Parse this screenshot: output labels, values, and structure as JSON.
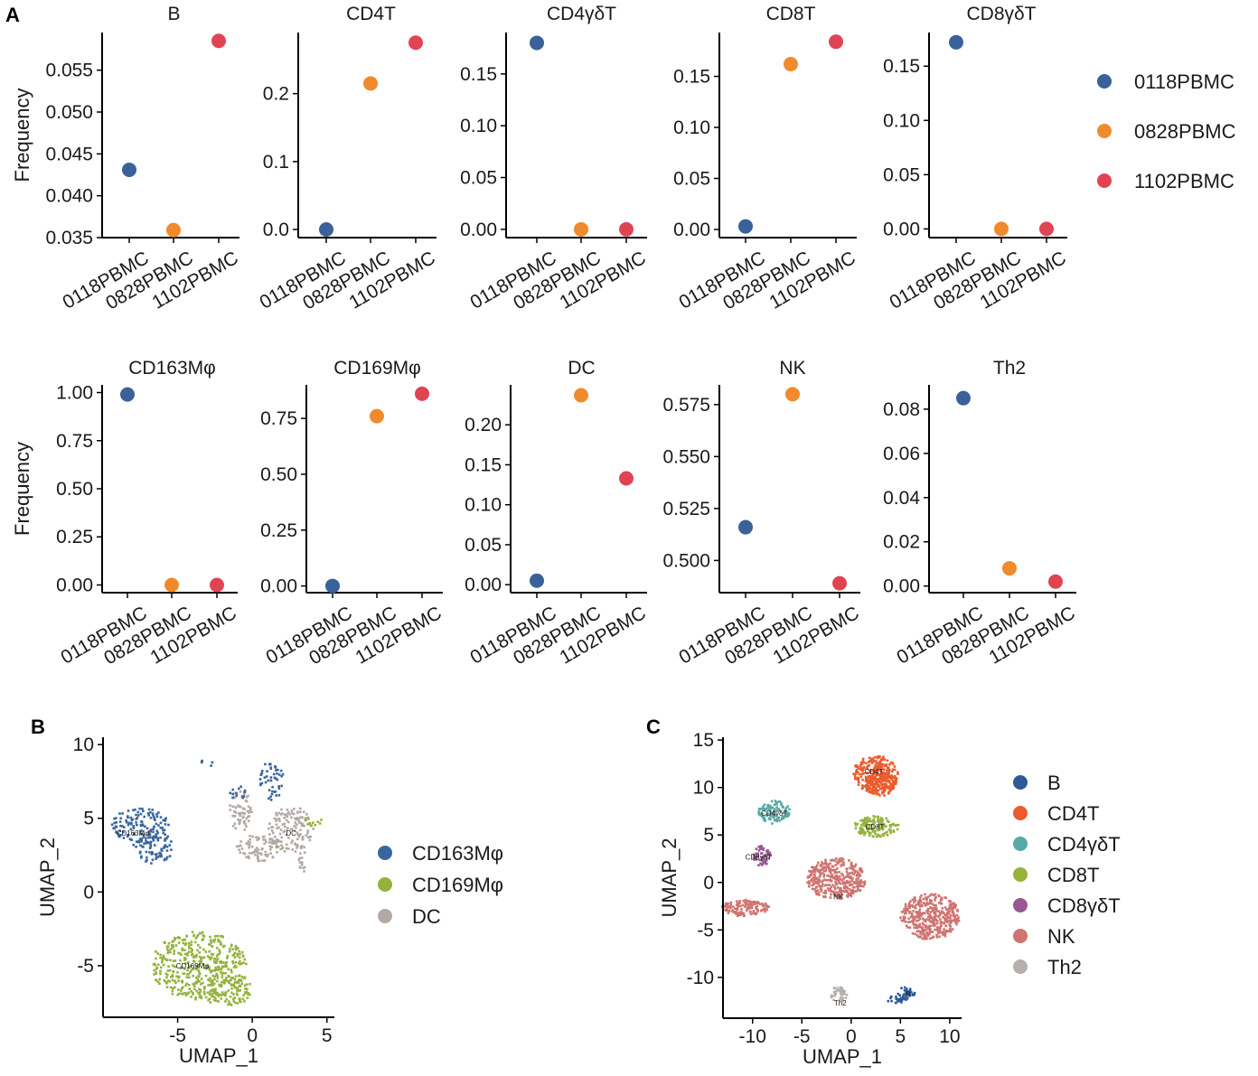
{
  "panel_labels": {
    "A": "A",
    "B": "B",
    "C": "C"
  },
  "colors": {
    "0118PBMC": "#3a619a",
    "0828PBMC": "#f08a2c",
    "1102PBMC": "#e04452",
    "B": "#2d5b96",
    "CD4T": "#ec5b2d",
    "CD4gdT": "#58aaa4",
    "CD8T": "#96b23d",
    "CD8gdT": "#9a5793",
    "NK": "#cf7470",
    "Th2": "#b5b0ad",
    "CD163Mphi": "#3a66a0",
    "CD169Mphi": "#96b23d",
    "DC": "#b2a9a6"
  },
  "chart_data": [
    {
      "type": "scatter",
      "panel": "A",
      "title": "B",
      "ylabel": "Frequency",
      "categories": [
        "0118PBMC",
        "0828PBMC",
        "1102PBMC"
      ],
      "values": [
        0.0431,
        0.0359,
        0.0585
      ],
      "ylim": [
        0.035,
        0.0595
      ],
      "yticks": [
        0.035,
        0.04,
        0.045,
        0.05,
        0.055
      ],
      "ytick_labels": [
        "0.035",
        "0.040",
        "0.045",
        "0.050",
        "0.055"
      ]
    },
    {
      "type": "scatter",
      "panel": "A",
      "title": "CD4T",
      "ylabel": "",
      "categories": [
        "0118PBMC",
        "0828PBMC",
        "1102PBMC"
      ],
      "values": [
        0.0,
        0.215,
        0.275
      ],
      "ylim": [
        -0.012,
        0.29
      ],
      "yticks": [
        0.0,
        0.1,
        0.2
      ],
      "ytick_labels": [
        "0.0",
        "0.1",
        "0.2"
      ]
    },
    {
      "type": "scatter",
      "panel": "A",
      "title": "CD4γδT",
      "ylabel": "",
      "categories": [
        "0118PBMC",
        "0828PBMC",
        "1102PBMC"
      ],
      "values": [
        0.18,
        0.0,
        0.0
      ],
      "ylim": [
        -0.008,
        0.19
      ],
      "yticks": [
        0.0,
        0.05,
        0.1,
        0.15
      ],
      "ytick_labels": [
        "0.00",
        "0.05",
        "0.10",
        "0.15"
      ]
    },
    {
      "type": "scatter",
      "panel": "A",
      "title": "CD8T",
      "ylabel": "",
      "categories": [
        "0118PBMC",
        "0828PBMC",
        "1102PBMC"
      ],
      "values": [
        0.003,
        0.162,
        0.184
      ],
      "ylim": [
        -0.008,
        0.193
      ],
      "yticks": [
        0.0,
        0.05,
        0.1,
        0.15
      ],
      "ytick_labels": [
        "0.00",
        "0.05",
        "0.10",
        "0.15"
      ]
    },
    {
      "type": "scatter",
      "panel": "A",
      "title": "CD8γδT",
      "ylabel": "",
      "categories": [
        "0118PBMC",
        "0828PBMC",
        "1102PBMC"
      ],
      "values": [
        0.172,
        0.0,
        0.0
      ],
      "ylim": [
        -0.008,
        0.181
      ],
      "yticks": [
        0.0,
        0.05,
        0.1,
        0.15
      ],
      "ytick_labels": [
        "0.00",
        "0.05",
        "0.10",
        "0.15"
      ]
    },
    {
      "type": "scatter",
      "panel": "A",
      "title": "CD163Mφ",
      "ylabel": "Frequency",
      "categories": [
        "0118PBMC",
        "0828PBMC",
        "1102PBMC"
      ],
      "values": [
        0.99,
        0.0,
        0.0
      ],
      "ylim": [
        -0.04,
        1.04
      ],
      "yticks": [
        0.0,
        0.25,
        0.5,
        0.75,
        1.0
      ],
      "ytick_labels": [
        "0.00",
        "0.25",
        "0.50",
        "0.75",
        "1.00"
      ]
    },
    {
      "type": "scatter",
      "panel": "A",
      "title": "CD169Mφ",
      "ylabel": "",
      "categories": [
        "0118PBMC",
        "0828PBMC",
        "1102PBMC"
      ],
      "values": [
        0.0,
        0.76,
        0.86
      ],
      "ylim": [
        -0.03,
        0.9
      ],
      "yticks": [
        0.0,
        0.25,
        0.5,
        0.75
      ],
      "ytick_labels": [
        "0.00",
        "0.25",
        "0.50",
        "0.75"
      ]
    },
    {
      "type": "scatter",
      "panel": "A",
      "title": "DC",
      "ylabel": "",
      "categories": [
        "0118PBMC",
        "0828PBMC",
        "1102PBMC"
      ],
      "values": [
        0.005,
        0.237,
        0.133
      ],
      "ylim": [
        -0.01,
        0.25
      ],
      "yticks": [
        0.0,
        0.05,
        0.1,
        0.15,
        0.2
      ],
      "ytick_labels": [
        "0.00",
        "0.05",
        "0.10",
        "0.15",
        "0.20"
      ]
    },
    {
      "type": "scatter",
      "panel": "A",
      "title": "NK",
      "ylabel": "",
      "categories": [
        "0118PBMC",
        "0828PBMC",
        "1102PBMC"
      ],
      "values": [
        0.516,
        0.58,
        0.489
      ],
      "ylim": [
        0.4845,
        0.5845
      ],
      "yticks": [
        0.5,
        0.525,
        0.55,
        0.575
      ],
      "ytick_labels": [
        "0.500",
        "0.525",
        "0.550",
        "0.575"
      ]
    },
    {
      "type": "scatter",
      "panel": "A",
      "title": "Th2",
      "ylabel": "",
      "categories": [
        "0118PBMC",
        "0828PBMC",
        "1102PBMC"
      ],
      "values": [
        0.085,
        0.008,
        0.002
      ],
      "ylim": [
        -0.003,
        0.091
      ],
      "yticks": [
        0.0,
        0.02,
        0.04,
        0.06,
        0.08
      ],
      "ytick_labels": [
        "0.00",
        "0.02",
        "0.04",
        "0.06",
        "0.08"
      ]
    },
    {
      "type": "scatter",
      "panel": "B",
      "title": "",
      "xlabel": "UMAP_1",
      "ylabel": "UMAP_2",
      "xlim": [
        -10,
        5.5
      ],
      "ylim": [
        -8.5,
        10.5
      ],
      "xticks": [
        -5,
        0,
        5
      ],
      "xtick_labels": [
        "-5",
        "0",
        "5"
      ],
      "yticks": [
        -5,
        0,
        5,
        10
      ],
      "ytick_labels": [
        "-5",
        "0",
        "5",
        "10"
      ],
      "legend": [
        "CD163Mφ",
        "CD169Mφ",
        "DC"
      ],
      "clusters": [
        {
          "name": "CD163Mφ",
          "label": "CD163Mφ",
          "center": [
            -8,
            4
          ],
          "parts": [
            [
              -7.5,
              4.5,
              1.9,
              1.2
            ],
            [
              -6.6,
              3.0,
              1.4,
              1.1
            ]
          ]
        },
        {
          "name": "CD169Mφ",
          "label": "CD169Mφ",
          "center": [
            -4,
            -5
          ],
          "parts": [
            [
              -3.6,
              -5.0,
              3.2,
              2.3
            ],
            [
              -1.8,
              -6.6,
              1.8,
              1.2
            ]
          ]
        },
        {
          "name": "DC",
          "label": "DC",
          "center": [
            2.6,
            4
          ],
          "parts": [
            [
              2.6,
              4.2,
              1.5,
              1.6
            ],
            [
              0.5,
              3.0,
              1.6,
              0.9
            ],
            [
              -0.8,
              5.5,
              0.8,
              1.4
            ],
            [
              3.4,
              2.0,
              0.3,
              0.8
            ]
          ]
        }
      ],
      "extra_points": [
        {
          "name": "CD163Mφ",
          "parts": [
            [
              1.3,
              7.7,
              0.8,
              1.5
            ],
            [
              -1.0,
              6.6,
              0.6,
              0.6
            ],
            [
              -3.0,
              8.8,
              0.4,
              0.3
            ]
          ]
        },
        {
          "name": "CD169Mφ",
          "parts": [
            [
              4.1,
              4.7,
              0.6,
              0.4
            ],
            [
              1.8,
              3.1,
              0.3,
              0.2
            ]
          ]
        }
      ]
    },
    {
      "type": "scatter",
      "panel": "C",
      "title": "",
      "xlabel": "UMAP_1",
      "ylabel": "UMAP_2",
      "xlim": [
        -13,
        11.2
      ],
      "ylim": [
        -14.3,
        15.3
      ],
      "xticks": [
        -10,
        -5,
        0,
        5,
        10
      ],
      "xtick_labels": [
        "-10",
        "-5",
        "0",
        "5",
        "10"
      ],
      "yticks": [
        -10,
        -5,
        0,
        5,
        10,
        15
      ],
      "ytick_labels": [
        "-10",
        "-5",
        "0",
        "5",
        "10",
        "15"
      ],
      "legend": [
        "B",
        "CD4T",
        "CD4γδT",
        "CD8T",
        "CD8γδT",
        "NK",
        "Th2"
      ],
      "clusters": [
        {
          "name": "B",
          "label": "B",
          "center": [
            5.8,
            -11.8
          ],
          "parts": [
            [
              5.6,
              -11.7,
              0.9,
              0.7
            ],
            [
              4.4,
              -12.4,
              0.9,
              0.4
            ]
          ]
        },
        {
          "name": "CD4T",
          "label": "CD4T",
          "center": [
            2.3,
            11.7
          ],
          "parts": [
            [
              2.5,
              11.4,
              2.3,
              2.0
            ],
            [
              3.0,
              10.4,
              1.6,
              1.3
            ]
          ]
        },
        {
          "name": "CD4γδT",
          "label": "CD4γδT",
          "center": [
            -7.8,
            7.3
          ],
          "parts": [
            [
              -7.8,
              7.4,
              1.6,
              1.2
            ]
          ]
        },
        {
          "name": "CD8T",
          "label": "CD8T",
          "center": [
            2.4,
            5.9
          ],
          "parts": [
            [
              2.6,
              5.9,
              2.3,
              1.1
            ]
          ]
        },
        {
          "name": "CD8γδT",
          "label": "CD8γδT",
          "center": [
            -9.4,
            2.7
          ],
          "parts": [
            [
              -9.0,
              2.8,
              0.9,
              1.1
            ]
          ]
        },
        {
          "name": "NK",
          "label": "NK",
          "center": [
            -1.3,
            -1.5
          ],
          "parts": [
            [
              -1.5,
              0.4,
              3.0,
              2.2
            ],
            [
              -10.8,
              -2.7,
              2.5,
              0.9
            ],
            [
              8.0,
              -3.6,
              3.0,
              2.4
            ]
          ]
        },
        {
          "name": "Th2",
          "label": "Th2",
          "center": [
            -1.1,
            -12.7
          ],
          "parts": [
            [
              -1.3,
              -11.8,
              0.9,
              0.8
            ]
          ]
        }
      ]
    }
  ]
}
